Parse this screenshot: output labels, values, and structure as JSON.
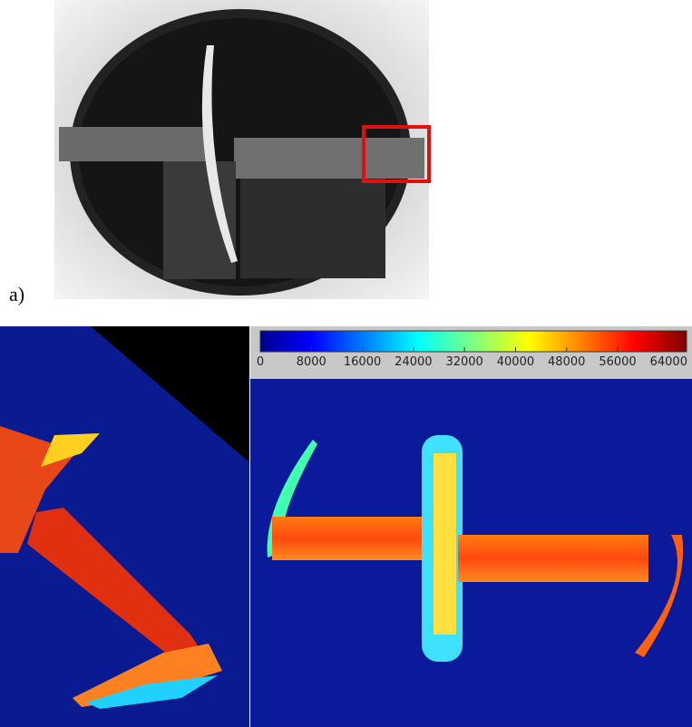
{
  "panel_label": "a)",
  "colorbar": {
    "xlim": [
      0,
      66800
    ],
    "xticks": [
      0,
      8000,
      16000,
      24000,
      32000,
      40000,
      48000,
      56000,
      64000
    ]
  }
}
